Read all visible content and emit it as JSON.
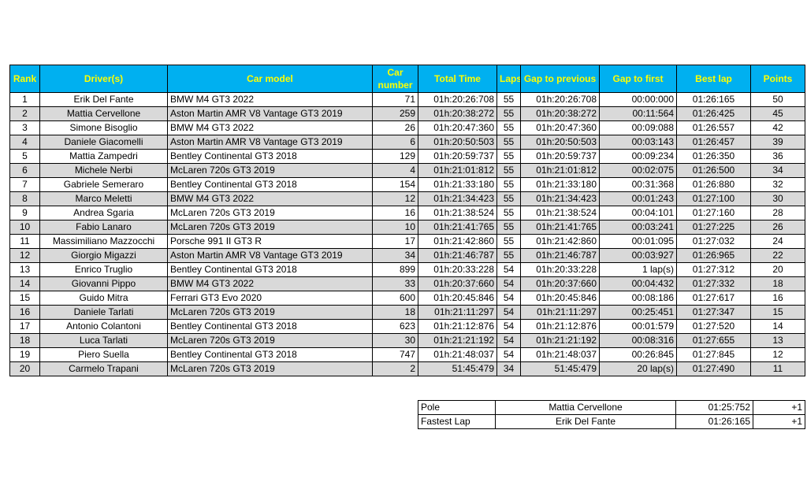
{
  "table": {
    "headers": [
      "Rank",
      "Driver(s)",
      "Car model",
      "Car number",
      "Total Time",
      "Laps",
      "Gap to previous",
      "Gap to first",
      "Best lap",
      "Points"
    ],
    "rows": [
      [
        1,
        "Erik Del Fante",
        "BMW M4 GT3 2022",
        71,
        "01h:20:26:708",
        55,
        "01h:20:26:708",
        "00:00:000",
        "01:26:165",
        50
      ],
      [
        2,
        "Mattia Cervellone",
        "Aston Martin AMR V8 Vantage GT3 2019",
        259,
        "01h:20:38:272",
        55,
        "01h:20:38:272",
        "00:11:564",
        "01:26:425",
        45
      ],
      [
        3,
        "Simone Bisoglio",
        "BMW M4 GT3 2022",
        26,
        "01h:20:47:360",
        55,
        "01h:20:47:360",
        "00:09:088",
        "01:26:557",
        42
      ],
      [
        4,
        "Daniele Giacomelli",
        "Aston Martin AMR V8 Vantage GT3 2019",
        6,
        "01h:20:50:503",
        55,
        "01h:20:50:503",
        "00:03:143",
        "01:26:457",
        39
      ],
      [
        5,
        "Mattia Zampedri",
        "Bentley Continental GT3 2018",
        129,
        "01h:20:59:737",
        55,
        "01h:20:59:737",
        "00:09:234",
        "01:26:350",
        36
      ],
      [
        6,
        "Michele Nerbi",
        "McLaren 720s GT3 2019",
        4,
        "01h:21:01:812",
        55,
        "01h:21:01:812",
        "00:02:075",
        "01:26:500",
        34
      ],
      [
        7,
        "Gabriele Semeraro",
        "Bentley Continental GT3 2018",
        154,
        "01h:21:33:180",
        55,
        "01h:21:33:180",
        "00:31:368",
        "01:26:880",
        32
      ],
      [
        8,
        "Marco Meletti",
        "BMW M4 GT3 2022",
        12,
        "01h:21:34:423",
        55,
        "01h:21:34:423",
        "00:01:243",
        "01:27:100",
        30
      ],
      [
        9,
        "Andrea Sgaria",
        "McLaren 720s GT3 2019",
        16,
        "01h:21:38:524",
        55,
        "01h:21:38:524",
        "00:04:101",
        "01:27:160",
        28
      ],
      [
        10,
        "Fabio Lanaro",
        "McLaren 720s GT3 2019",
        10,
        "01h:21:41:765",
        55,
        "01h:21:41:765",
        "00:03:241",
        "01:27:225",
        26
      ],
      [
        11,
        "Massimiliano Mazzocchi",
        "Porsche 991 II GT3 R",
        17,
        "01h:21:42:860",
        55,
        "01h:21:42:860",
        "00:01:095",
        "01:27:032",
        24
      ],
      [
        12,
        "Giorgio Migazzi",
        "Aston Martin AMR V8 Vantage GT3 2019",
        34,
        "01h:21:46:787",
        55,
        "01h:21:46:787",
        "00:03:927",
        "01:26:965",
        22
      ],
      [
        13,
        "Enrico Truglio",
        "Bentley Continental GT3 2018",
        899,
        "01h:20:33:228",
        54,
        "01h:20:33:228",
        "1 lap(s)",
        "01:27:312",
        20
      ],
      [
        14,
        "Giovanni Pippo",
        "BMW M4 GT3 2022",
        33,
        "01h:20:37:660",
        54,
        "01h:20:37:660",
        "00:04:432",
        "01:27:332",
        18
      ],
      [
        15,
        "Guido Mitra",
        "Ferrari GT3 Evo 2020",
        600,
        "01h:20:45:846",
        54,
        "01h:20:45:846",
        "00:08:186",
        "01:27:617",
        16
      ],
      [
        16,
        "Daniele Tarlati",
        "McLaren 720s GT3 2019",
        18,
        "01h:21:11:297",
        54,
        "01h:21:11:297",
        "00:25:451",
        "01:27:347",
        15
      ],
      [
        17,
        "Antonio Colantoni",
        "Bentley Continental GT3 2018",
        623,
        "01h:21:12:876",
        54,
        "01h:21:12:876",
        "00:01:579",
        "01:27:520",
        14
      ],
      [
        18,
        "Luca Tarlati",
        "McLaren 720s GT3 2019",
        30,
        "01h:21:21:192",
        54,
        "01h:21:21:192",
        "00:08:316",
        "01:27:655",
        13
      ],
      [
        19,
        "Piero Suella",
        "Bentley Continental GT3 2018",
        747,
        "01h:21:48:037",
        54,
        "01h:21:48:037",
        "00:26:845",
        "01:27:845",
        12
      ],
      [
        20,
        "Carmelo Trapani",
        "McLaren 720s GT3 2019",
        2,
        "51:45:479",
        34,
        "51:45:479",
        "20 lap(s)",
        "01:27:490",
        11
      ]
    ]
  },
  "summary": {
    "rows": [
      [
        "Pole",
        "Mattia Cervellone",
        "01:25:752",
        "+1"
      ],
      [
        "Fastest Lap",
        "Erik Del Fante",
        "01:26:165",
        "+1"
      ]
    ]
  }
}
